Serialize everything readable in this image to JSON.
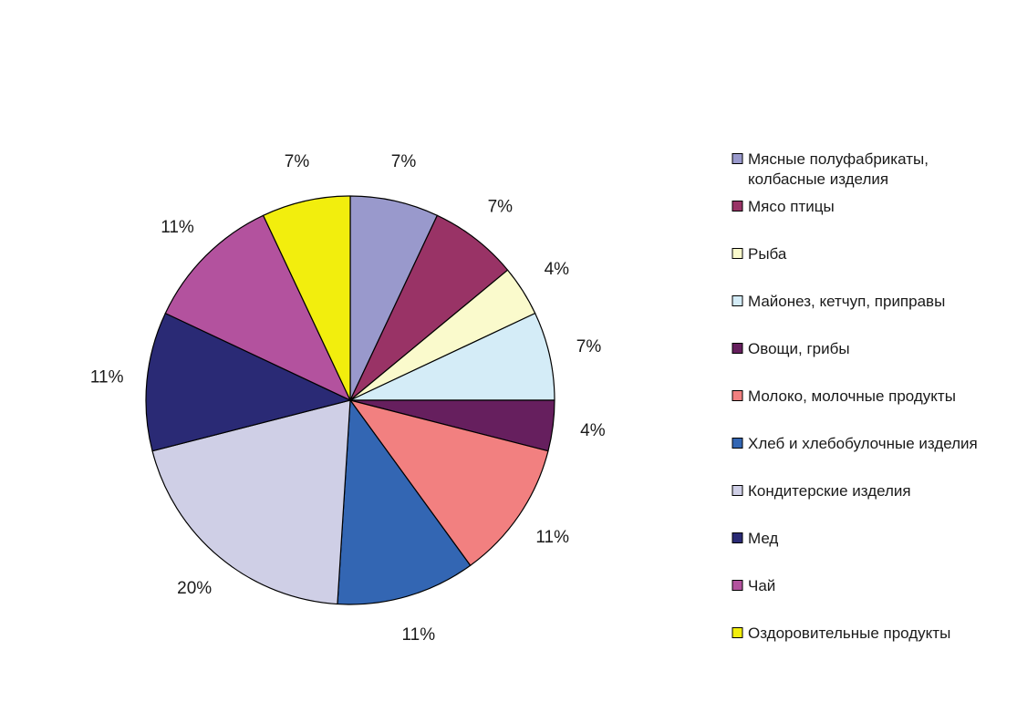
{
  "chart_data": {
    "type": "pie",
    "legend_position": "right",
    "slices": [
      {
        "label": "Мясные полуфабрикаты, колбасные изделия",
        "legend_lines": [
          "Мясные полуфабрикаты,",
          "колбасные изделия"
        ],
        "value": 7,
        "display": "7%",
        "color": "#9999cc"
      },
      {
        "label": "Мясо птицы",
        "legend_lines": [
          "Мясо птицы"
        ],
        "value": 7,
        "display": "7%",
        "color": "#993366"
      },
      {
        "label": "Рыба",
        "legend_lines": [
          "Рыба"
        ],
        "value": 4,
        "display": "4%",
        "color": "#fafacc"
      },
      {
        "label": "Майонез, кетчуп, приправы",
        "legend_lines": [
          "Майонез, кетчуп, приправы"
        ],
        "value": 7,
        "display": "7%",
        "color": "#d4ecf7"
      },
      {
        "label": "Овощи, грибы",
        "legend_lines": [
          "Овощи, грибы"
        ],
        "value": 4,
        "display": "4%",
        "color": "#661f5e"
      },
      {
        "label": "Молоко, молочные продукты",
        "legend_lines": [
          "Молоко, молочные продукты"
        ],
        "value": 11,
        "display": "11%",
        "color": "#f28080"
      },
      {
        "label": "Хлеб и хлебобулочные изделия",
        "legend_lines": [
          "Хлеб и хлебобулочные изделия"
        ],
        "value": 11,
        "display": "11%",
        "color": "#3366b3"
      },
      {
        "label": "Кондитерские изделия",
        "legend_lines": [
          "Кондитерские изделия"
        ],
        "value": 20,
        "display": "20%",
        "color": "#cfcfe6"
      },
      {
        "label": "Мед",
        "legend_lines": [
          "Мед"
        ],
        "value": 11,
        "display": "11%",
        "color": "#2a2a75"
      },
      {
        "label": "Чай",
        "legend_lines": [
          "Чай"
        ],
        "value": 11,
        "display": "11%",
        "color": "#b3529e"
      },
      {
        "label": "Оздоровительные продукты",
        "legend_lines": [
          "Оздоровительные продукты"
        ],
        "value": 7,
        "display": "7%",
        "color": "#f2ee0d"
      }
    ]
  }
}
